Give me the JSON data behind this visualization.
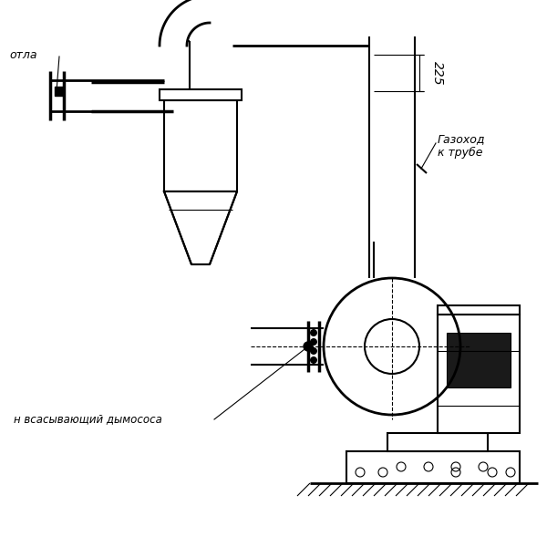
{
  "bg_color": "#ffffff",
  "line_color": "#000000",
  "line_width": 1.5,
  "thin_lw": 0.8,
  "text_kotla": "отла",
  "text_gazokhod": "Газоход\nк трубе",
  "text_patron": "н всасывающий дымососа",
  "dim_225": "225",
  "figsize": [
    6.0,
    6.0
  ],
  "dpi": 100
}
